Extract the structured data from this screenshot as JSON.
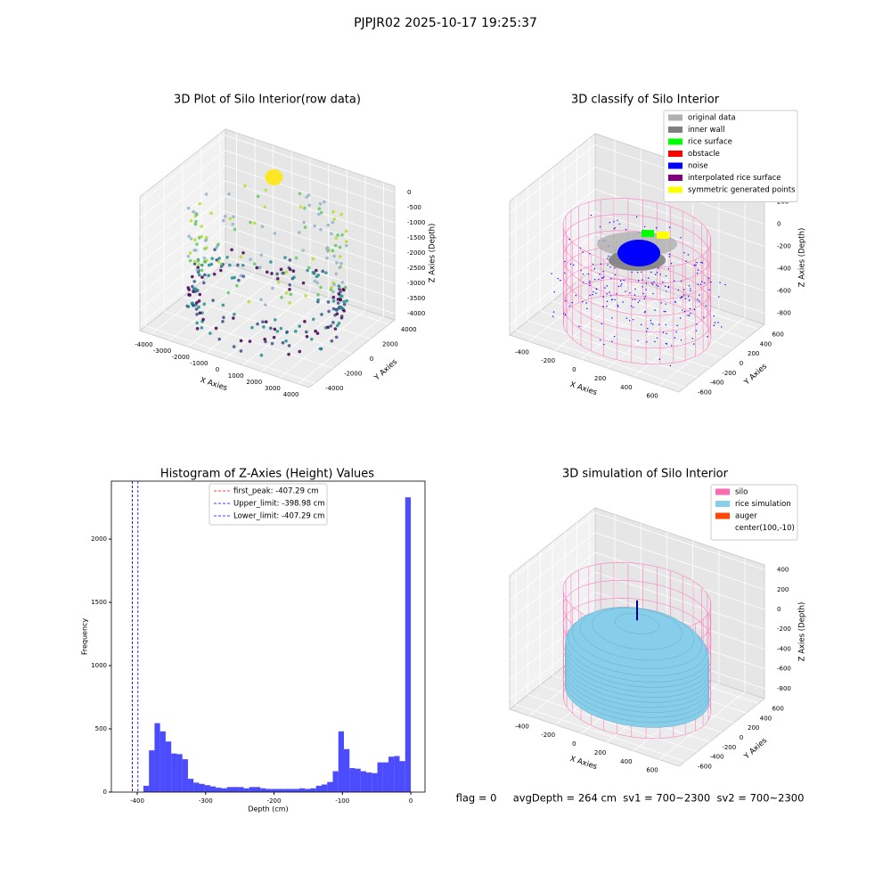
{
  "title": "PJPJR02 2025-10-17 19:25:37",
  "status": "flag = 0     avgDepth = 264 cm  sv1 = 700~2300  sv2 = 700~2300",
  "chart_data": [
    {
      "type": "scatter3d",
      "title": "3D Plot of Silo Interior(row data)",
      "xlabel": "X Axies",
      "ylabel": "Y Axies",
      "zlabel": "Z Axies (Depth)",
      "xlim": [
        -4600,
        4600
      ],
      "ylim": [
        -4600,
        4600
      ],
      "zlim": [
        -4200,
        200
      ],
      "xticks": [
        -4000,
        -3000,
        -2000,
        -1000,
        0,
        1000,
        2000,
        3000,
        4000
      ],
      "yticks": [
        -4000,
        -2000,
        0,
        2000,
        4000
      ],
      "zticks": [
        -4000,
        -3500,
        -3000,
        -2500,
        -2000,
        -1500,
        -1000,
        -500,
        0
      ]
    },
    {
      "type": "classify3d",
      "title": "3D classify of Silo Interior",
      "xlabel": "X Axies",
      "ylabel": "Y Axies",
      "zlabel": "Z Axies (Depth)",
      "xlim": [
        -550,
        750
      ],
      "ylim": [
        -700,
        700
      ],
      "zlim": [
        -900,
        300
      ],
      "xticks": [
        -400,
        -200,
        0,
        200,
        400,
        600
      ],
      "yticks": [
        -600,
        -400,
        -200,
        0,
        200,
        400,
        600
      ],
      "zticks": [
        -800,
        -600,
        -400,
        -200,
        0,
        200
      ],
      "legend": [
        {
          "name": "original data",
          "color": "#b0b0b0"
        },
        {
          "name": "inner wall",
          "color": "#808080"
        },
        {
          "name": "rice surface",
          "color": "#00ff00"
        },
        {
          "name": "obstacle",
          "color": "#ff0000"
        },
        {
          "name": "noise",
          "color": "#0000ff"
        },
        {
          "name": "interpolated rice surface",
          "color": "#800080"
        },
        {
          "name": "symmetric generated points",
          "color": "#ffff00"
        }
      ]
    },
    {
      "type": "histogram",
      "title": "Histogram of Z-Axies (Height) Values",
      "xlabel": "Depth (cm)",
      "ylabel": "Frequency",
      "color": "#0000ff",
      "bins": [
        -407.29,
        -399.15,
        -391.0,
        -382.85,
        -374.71,
        -366.56,
        -358.42,
        -350.27,
        -342.12,
        -333.98,
        -325.83,
        -317.69,
        -309.54,
        -301.4,
        -293.25,
        -285.1,
        -276.96,
        -268.81,
        -260.67,
        -252.52,
        -244.38,
        -236.23,
        -228.08,
        -219.94,
        -211.79,
        -203.65,
        -195.5,
        -187.35,
        -179.21,
        -171.06,
        -162.92,
        -154.77,
        -146.62,
        -138.48,
        -130.33,
        -122.19,
        -114.04,
        -105.9,
        -97.75,
        -89.6,
        -81.46,
        -73.31,
        -65.17,
        -57.02,
        -48.87,
        -40.73,
        -32.58,
        -24.44,
        -16.29,
        -8.15,
        0
      ],
      "values": [
        0,
        0,
        50,
        330,
        545,
        480,
        400,
        305,
        300,
        260,
        105,
        75,
        65,
        55,
        45,
        35,
        30,
        40,
        40,
        40,
        30,
        40,
        40,
        30,
        25,
        25,
        25,
        25,
        25,
        25,
        30,
        25,
        30,
        50,
        60,
        80,
        165,
        480,
        340,
        190,
        185,
        165,
        155,
        150,
        235,
        235,
        280,
        285,
        245,
        2330
      ],
      "xlim": [
        -437.8,
        20.8
      ],
      "ylim": [
        0,
        2458
      ],
      "xticks": [
        -400,
        -300,
        -200,
        -100,
        0
      ],
      "yticks": [
        0,
        500,
        1000,
        1500,
        2000
      ],
      "lines": [
        {
          "name": "first_peak: -407.29 cm",
          "value": -407.29,
          "color": "#ff0000"
        },
        {
          "name": "Upper_limit: -398.98 cm",
          "value": -398.98,
          "color": "#0000ff"
        },
        {
          "name": "Lower_limit: -407.29 cm",
          "value": -407.29,
          "color": "#0000ff"
        }
      ]
    },
    {
      "type": "simulation3d",
      "title": "3D simulation of Silo Interior",
      "xlabel": "X Axies",
      "ylabel": "Y Axies",
      "zlabel": "Z Axies (Depth)",
      "xlim": [
        -550,
        750
      ],
      "ylim": [
        -700,
        700
      ],
      "zlim": [
        -900,
        450
      ],
      "xticks": [
        -400,
        -200,
        0,
        200,
        400,
        600
      ],
      "yticks": [
        -600,
        -400,
        -200,
        0,
        200,
        400,
        600
      ],
      "zticks": [
        -800,
        -600,
        -400,
        -200,
        0,
        200,
        400
      ],
      "legend": [
        {
          "name": "silo",
          "color": "#ff69b4"
        },
        {
          "name": "rice simulation",
          "color": "#87ceeb"
        },
        {
          "name": "auger",
          "color": "#ff4500"
        },
        {
          "name": "center(100,-10)",
          "color": "#ffffff"
        }
      ]
    }
  ]
}
